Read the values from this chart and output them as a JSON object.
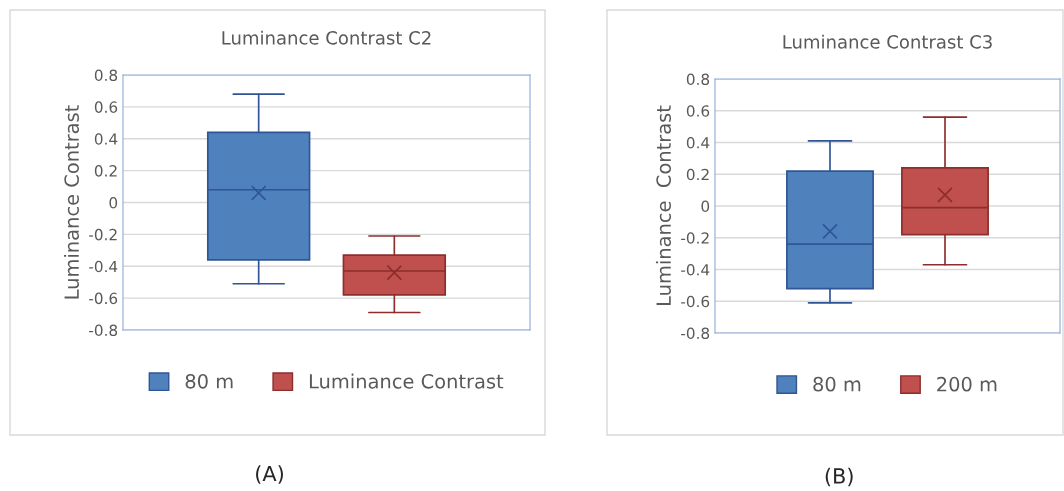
{
  "chart_data": [
    {
      "type": "box",
      "title": "Luminance Contrast C2",
      "ylabel": "Luminance Contrast",
      "categories": [
        null
      ],
      "ylim": [
        -0.8,
        0.8
      ],
      "yticks": [
        0.8,
        0.6,
        0.4,
        0.2,
        0,
        -0.2,
        -0.4,
        -0.6,
        -0.8
      ],
      "grid": "y",
      "legend": "bottom",
      "tick_labels": "y",
      "annotations": [
        "(A)"
      ],
      "series": [
        {
          "name": "80 m",
          "color": "#4f81bd",
          "boxes": [
            {
              "low": -0.51,
              "q1": -0.36,
              "median": 0.08,
              "q3": 0.44,
              "high": 0.68,
              "mean": 0.06
            }
          ]
        },
        {
          "name": "Luminance Contrast",
          "color": "#c0504d",
          "boxes": [
            {
              "low": -0.69,
              "q1": -0.58,
              "median": -0.43,
              "q3": -0.33,
              "high": -0.21,
              "mean": -0.44
            }
          ]
        }
      ]
    },
    {
      "type": "box",
      "title": "Luminance Contrast C3",
      "ylabel": "Luminance  Contrast",
      "categories": [
        null
      ],
      "ylim": [
        -0.8,
        0.8
      ],
      "yticks": [
        0.8,
        0.6,
        0.4,
        0.2,
        0,
        -0.2,
        -0.4,
        -0.6,
        -0.8
      ],
      "grid": "y",
      "legend": "bottom",
      "tick_labels": "y",
      "annotations": [
        "(B)"
      ],
      "series": [
        {
          "name": "80 m",
          "color": "#4f81bd",
          "boxes": [
            {
              "low": -0.61,
              "q1": -0.52,
              "median": -0.24,
              "q3": 0.22,
              "high": 0.41,
              "mean": -0.16
            }
          ]
        },
        {
          "name": "200 m",
          "color": "#c0504d",
          "boxes": [
            {
              "low": -0.37,
              "q1": -0.18,
              "median": -0.01,
              "q3": 0.24,
              "high": 0.56,
              "mean": 0.07
            }
          ]
        }
      ]
    }
  ]
}
